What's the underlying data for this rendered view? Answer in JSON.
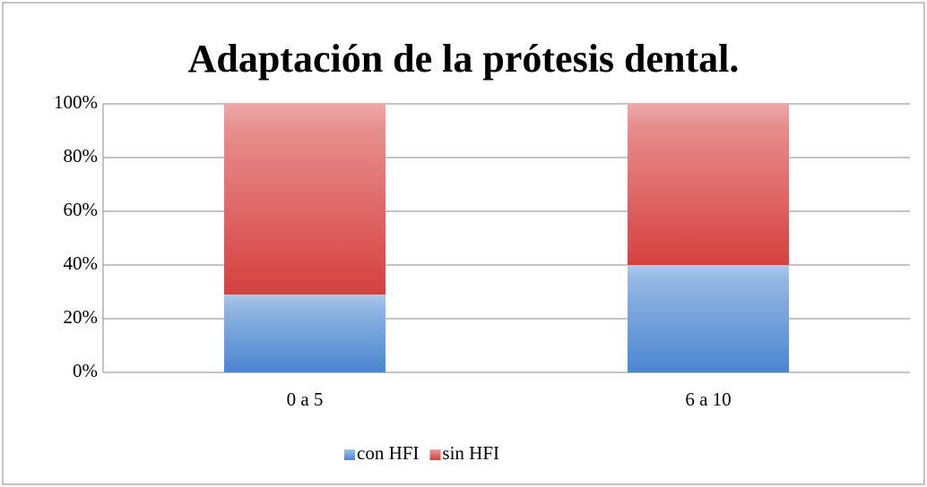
{
  "chart_data": {
    "type": "stacked_bar",
    "title": "Adaptación de la prótesis dental.",
    "categories": [
      "0 a 5",
      "6 a 10"
    ],
    "series": [
      {
        "name": "con HFI",
        "color": "#4a86d0",
        "values": [
          29,
          40
        ]
      },
      {
        "name": "sin HFI",
        "color": "#d6403e",
        "values": [
          71,
          60
        ]
      }
    ],
    "ylim": [
      0,
      100
    ],
    "yticks": [
      {
        "value": 0,
        "label": "0%"
      },
      {
        "value": 20,
        "label": "20%"
      },
      {
        "value": 40,
        "label": "40%"
      },
      {
        "value": 60,
        "label": "60%"
      },
      {
        "value": 80,
        "label": "80%"
      },
      {
        "value": 100,
        "label": "100%"
      }
    ],
    "grid": true,
    "legend": "bottom"
  }
}
